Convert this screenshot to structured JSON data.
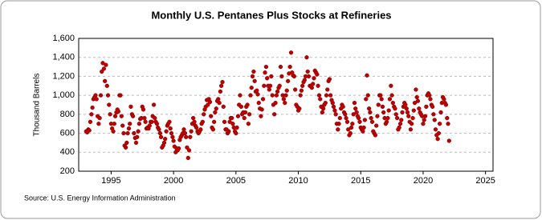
{
  "chart_data": {
    "type": "scatter",
    "title": "Monthly U.S. Pentanes Plus Stocks at Refineries",
    "y_label": "Thousand Barrels",
    "source": "Source: U.S. Energy Information Administration",
    "xlim": [
      1992.4,
      2025.6
    ],
    "xticks": [
      1995,
      2000,
      2005,
      2010,
      2015,
      2020,
      2025
    ],
    "ylim": [
      200,
      1600
    ],
    "yticks": [
      200,
      400,
      600,
      800,
      {
        "value": 1000,
        "label": "1,000"
      },
      {
        "value": 1200,
        "label": "1,200"
      },
      {
        "value": 1400,
        "label": "1,400"
      },
      {
        "value": 1600,
        "label": "1,600"
      }
    ],
    "grid": true,
    "series": [
      {
        "color": "#c00000",
        "x": [
          1993,
          1993.08,
          1993.17,
          1993.25,
          1993.33,
          1993.42,
          1993.5,
          1993.58,
          1993.67,
          1993.75,
          1993.83,
          1993.92,
          1994,
          1994.08,
          1994.17,
          1994.25,
          1994.33,
          1994.42,
          1994.5,
          1994.58,
          1994.67,
          1994.75,
          1994.83,
          1994.92,
          1995,
          1995.08,
          1995.17,
          1995.25,
          1995.33,
          1995.42,
          1995.5,
          1995.58,
          1995.67,
          1995.75,
          1995.83,
          1995.92,
          1996,
          1996.08,
          1996.17,
          1996.25,
          1996.33,
          1996.42,
          1996.5,
          1996.58,
          1996.67,
          1996.75,
          1996.83,
          1996.92,
          1997,
          1997.08,
          1997.17,
          1997.25,
          1997.33,
          1997.42,
          1997.5,
          1997.58,
          1997.67,
          1997.75,
          1997.83,
          1997.92,
          1998,
          1998.08,
          1998.17,
          1998.25,
          1998.33,
          1998.42,
          1998.5,
          1998.58,
          1998.67,
          1998.75,
          1998.83,
          1998.92,
          1999,
          1999.08,
          1999.17,
          1999.25,
          1999.33,
          1999.42,
          1999.5,
          1999.58,
          1999.67,
          1999.75,
          1999.83,
          1999.92,
          2000,
          2000.08,
          2000.17,
          2000.25,
          2000.33,
          2000.42,
          2000.5,
          2000.58,
          2000.67,
          2000.75,
          2000.83,
          2000.92,
          2001,
          2001.08,
          2001.17,
          2001.25,
          2001.33,
          2001.42,
          2001.5,
          2001.58,
          2001.67,
          2001.75,
          2001.83,
          2001.92,
          2002,
          2002.08,
          2002.17,
          2002.25,
          2002.33,
          2002.42,
          2002.5,
          2002.58,
          2002.67,
          2002.75,
          2002.83,
          2002.92,
          2003,
          2003.08,
          2003.17,
          2003.25,
          2003.33,
          2003.42,
          2003.5,
          2003.58,
          2003.67,
          2003.75,
          2003.83,
          2003.92,
          2004,
          2004.08,
          2004.17,
          2004.25,
          2004.33,
          2004.42,
          2004.5,
          2004.58,
          2004.67,
          2004.75,
          2004.83,
          2004.92,
          2005,
          2005.08,
          2005.17,
          2005.25,
          2005.33,
          2005.42,
          2005.5,
          2005.58,
          2005.67,
          2005.75,
          2005.83,
          2005.92,
          2006,
          2006.08,
          2006.17,
          2006.25,
          2006.33,
          2006.42,
          2006.5,
          2006.58,
          2006.67,
          2006.75,
          2006.83,
          2006.92,
          2007,
          2007.08,
          2007.17,
          2007.25,
          2007.33,
          2007.42,
          2007.5,
          2007.58,
          2007.67,
          2007.75,
          2007.83,
          2007.92,
          2008,
          2008.08,
          2008.17,
          2008.25,
          2008.33,
          2008.42,
          2008.5,
          2008.58,
          2008.67,
          2008.75,
          2008.83,
          2008.92,
          2009,
          2009.08,
          2009.17,
          2009.25,
          2009.33,
          2009.42,
          2009.5,
          2009.58,
          2009.67,
          2009.75,
          2009.83,
          2009.92,
          2010,
          2010.08,
          2010.17,
          2010.25,
          2010.33,
          2010.42,
          2010.5,
          2010.58,
          2010.67,
          2010.75,
          2010.83,
          2010.92,
          2011,
          2011.08,
          2011.17,
          2011.25,
          2011.33,
          2011.42,
          2011.5,
          2011.58,
          2011.67,
          2011.75,
          2011.83,
          2011.92,
          2012,
          2012.08,
          2012.17,
          2012.25,
          2012.33,
          2012.42,
          2012.5,
          2012.58,
          2012.67,
          2012.75,
          2012.83,
          2012.92,
          2013,
          2013.08,
          2013.17,
          2013.25,
          2013.33,
          2013.42,
          2013.5,
          2013.58,
          2013.67,
          2013.75,
          2013.83,
          2013.92,
          2014,
          2014.08,
          2014.17,
          2014.25,
          2014.33,
          2014.42,
          2014.5,
          2014.58,
          2014.67,
          2014.75,
          2014.83,
          2014.92,
          2015,
          2015.08,
          2015.17,
          2015.25,
          2015.33,
          2015.42,
          2015.5,
          2015.58,
          2015.67,
          2015.75,
          2015.83,
          2015.92,
          2016,
          2016.08,
          2016.17,
          2016.25,
          2016.33,
          2016.42,
          2016.5,
          2016.58,
          2016.67,
          2016.75,
          2016.83,
          2016.92,
          2017,
          2017.08,
          2017.17,
          2017.25,
          2017.33,
          2017.42,
          2017.5,
          2017.58,
          2017.67,
          2017.75,
          2017.83,
          2017.92,
          2018,
          2018.08,
          2018.17,
          2018.25,
          2018.33,
          2018.42,
          2018.5,
          2018.58,
          2018.67,
          2018.75,
          2018.83,
          2018.92,
          2019,
          2019.08,
          2019.17,
          2019.25,
          2019.33,
          2019.42,
          2019.5,
          2019.58,
          2019.67,
          2019.75,
          2019.83,
          2019.92,
          2020,
          2020.08,
          2020.17,
          2020.25,
          2020.33,
          2020.42,
          2020.5,
          2020.58,
          2020.67,
          2020.75,
          2020.83,
          2020.92,
          2021,
          2021.08,
          2021.17,
          2021.25,
          2021.33,
          2021.42,
          2021.5,
          2021.58,
          2021.67,
          2021.75,
          2021.83,
          2021.92,
          2022,
          2022.08
        ],
        "values": [
          620,
          610,
          640,
          630,
          720,
          800,
          870,
          960,
          980,
          1000,
          960,
          780,
          700,
          760,
          1000,
          1250,
          1340,
          1280,
          1150,
          1320,
          1100,
          1000,
          900,
          800,
          700,
          650,
          620,
          700,
          780,
          820,
          850,
          830,
          1000,
          1000,
          780,
          680,
          600,
          470,
          450,
          500,
          600,
          650,
          700,
          880,
          800,
          780,
          600,
          550,
          500,
          560,
          620,
          700,
          750,
          760,
          880,
          850,
          760,
          720,
          650,
          660,
          650,
          680,
          720,
          720,
          780,
          900,
          760,
          720,
          700,
          660,
          640,
          600,
          560,
          450,
          470,
          500,
          540,
          620,
          680,
          700,
          720,
          650,
          600,
          560,
          520,
          460,
          400,
          440,
          420,
          440,
          530,
          560,
          580,
          600,
          640,
          600,
          560,
          450,
          340,
          420,
          560,
          620,
          700,
          760,
          720,
          680,
          660,
          620,
          600,
          620,
          640,
          700,
          720,
          800,
          850,
          880,
          950,
          900,
          960,
          930,
          780,
          660,
          640,
          720,
          820,
          860,
          940,
          960,
          920,
          1040,
          1100,
          1140,
          880,
          720,
          640,
          640,
          600,
          620,
          720,
          760,
          760,
          700,
          660,
          620,
          600,
          660,
          780,
          900,
          1000,
          880,
          800,
          820,
          760,
          820,
          880,
          900,
          700,
          800,
          1000,
          1080,
          1200,
          1250,
          1150,
          1040,
          1050,
          1010,
          920,
          860,
          780,
          850,
          960,
          1100,
          1240,
          1300,
          1180,
          1100,
          1060,
          1100,
          1200,
          1000,
          900,
          800,
          920,
          1000,
          1040,
          1080,
          1100,
          1300,
          1200,
          1000,
          960,
          920,
          1000,
          1050,
          1150,
          1230,
          1300,
          1450,
          1240,
          1210,
          1200,
          1060,
          900,
          880,
          840,
          860,
          1000,
          1050,
          1100,
          1140,
          1160,
          1200,
          1400,
          1250,
          1200,
          1100,
          1100,
          1080,
          1120,
          1180,
          1260,
          1240,
          1220,
          1100,
          1000,
          960,
          880,
          820,
          860,
          900,
          920,
          1000,
          1060,
          1150,
          1170,
          1000,
          950,
          920,
          880,
          840,
          800,
          700,
          640,
          700,
          760,
          860,
          900,
          880,
          820,
          800,
          760,
          720,
          640,
          580,
          600,
          660,
          700,
          800,
          920,
          860,
          820,
          780,
          760,
          720,
          660,
          640,
          620,
          660,
          740,
          960,
          1210,
          1000,
          860,
          820,
          760,
          720,
          620,
          600,
          580,
          680,
          780,
          900,
          1000,
          1000,
          960,
          880,
          820,
          760,
          700,
          720,
          760,
          840,
          960,
          1100,
          1000,
          920,
          880,
          860,
          800,
          760,
          640,
          660,
          700,
          740,
          820,
          880,
          920,
          900,
          860,
          820,
          780,
          720,
          640,
          700,
          760,
          840,
          920,
          1060,
          980,
          940,
          860,
          820,
          800,
          780,
          700,
          740,
          780,
          880,
          1000,
          1020,
          1000,
          960,
          900,
          880,
          800,
          740,
          640,
          580,
          540,
          600,
          700,
          820,
          920,
          980,
          960,
          920,
          900,
          760,
          700,
          520
        ]
      }
    ]
  }
}
